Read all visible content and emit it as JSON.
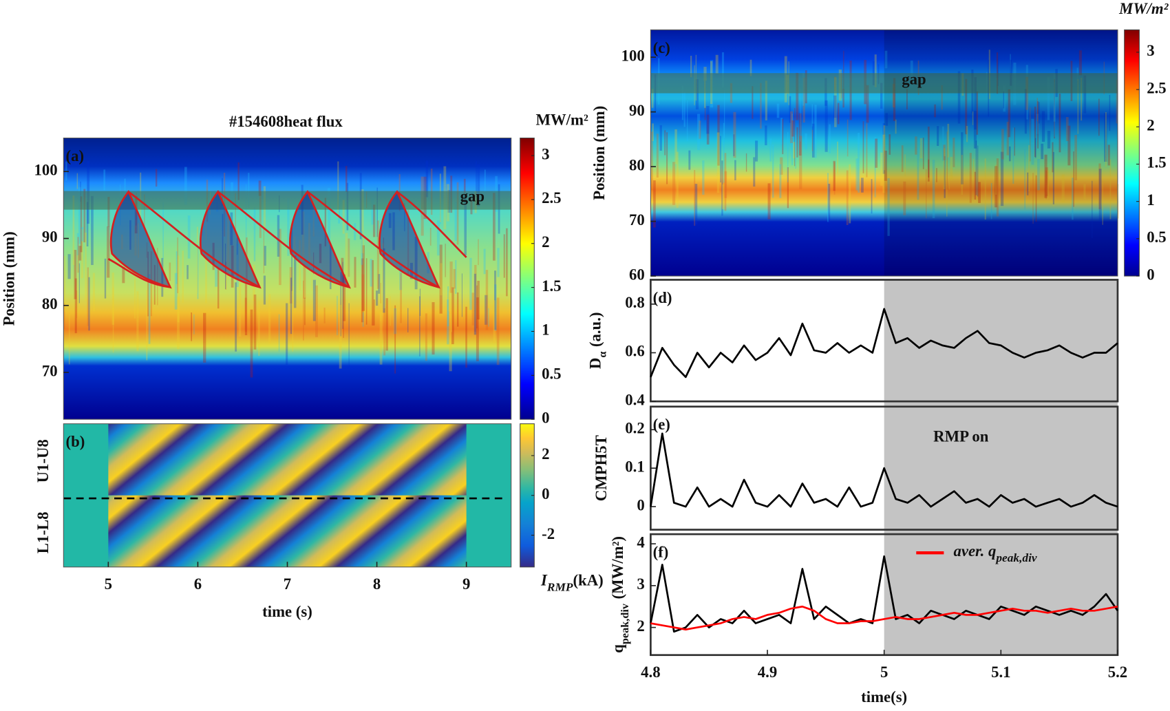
{
  "chart_data": [
    {
      "type": "heatmap",
      "panel_label": "(a)",
      "title": "#154608heat flux",
      "ylabel": "Position (mm)",
      "ylim": [
        63,
        105
      ],
      "yticks": [
        70,
        80,
        90,
        100
      ],
      "xlim": [
        4.5,
        9.5
      ],
      "colormap": "jet",
      "clim": [
        0,
        3.2
      ],
      "cticks": [
        0,
        0.5,
        1,
        1.5,
        2,
        2.5,
        3
      ],
      "colorbar_label": "MW/m²",
      "annotations": [
        "gap"
      ]
    },
    {
      "type": "heatmap",
      "panel_label": "(b)",
      "row_labels": [
        "U1-U8",
        "L1-L8"
      ],
      "xlim": [
        4.5,
        9.5
      ],
      "xticks": [
        5,
        6,
        7,
        8,
        9
      ],
      "xlabel": "time (s)",
      "colormap": "parula",
      "clim": [
        -3.6,
        3.6
      ],
      "cticks": [
        -2,
        0,
        2
      ],
      "colorbar_label": "I",
      "colorbar_label_sub": "RMP",
      "colorbar_label_unit": "(kA)"
    },
    {
      "type": "heatmap",
      "panel_label": "(c)",
      "ylabel": "Position (mm)",
      "ylim": [
        60,
        105
      ],
      "yticks": [
        60,
        70,
        80,
        90,
        100
      ],
      "xlim": [
        4.8,
        5.2
      ],
      "colormap": "jet",
      "clim": [
        0,
        3.3
      ],
      "cticks": [
        0,
        0.5,
        1,
        1.5,
        2,
        2.5,
        3
      ],
      "colorbar_label": "MW/m²",
      "annotations": [
        "gap"
      ]
    },
    {
      "type": "line",
      "panel_label": "(d)",
      "ylabel": "D",
      "ylabel_sub": "α",
      "ylabel_unit": "(a.u.)",
      "x": [
        4.8,
        4.81,
        4.82,
        4.83,
        4.84,
        4.85,
        4.86,
        4.87,
        4.88,
        4.89,
        4.9,
        4.91,
        4.92,
        4.93,
        4.94,
        4.95,
        4.96,
        4.97,
        4.98,
        4.99,
        5,
        5.01,
        5.02,
        5.03,
        5.04,
        5.05,
        5.06,
        5.07,
        5.08,
        5.09,
        5.1,
        5.11,
        5.12,
        5.13,
        5.14,
        5.15,
        5.16,
        5.17,
        5.18,
        5.19,
        5.2
      ],
      "xlim": [
        4.8,
        5.2
      ],
      "ylim": [
        0.4,
        0.9
      ],
      "yticks": [
        0.4,
        0.6,
        0.8
      ],
      "series": [
        {
          "color": "#000000",
          "values": [
            0.5,
            0.62,
            0.55,
            0.5,
            0.6,
            0.54,
            0.6,
            0.56,
            0.63,
            0.57,
            0.6,
            0.66,
            0.59,
            0.72,
            0.61,
            0.6,
            0.64,
            0.6,
            0.63,
            0.6,
            0.78,
            0.64,
            0.66,
            0.62,
            0.65,
            0.63,
            0.62,
            0.66,
            0.69,
            0.64,
            0.63,
            0.6,
            0.58,
            0.6,
            0.61,
            0.63,
            0.6,
            0.58,
            0.6,
            0.6,
            0.64
          ]
        }
      ]
    },
    {
      "type": "line",
      "panel_label": "(e)",
      "ylabel": "CMPH5T",
      "x": [
        4.8,
        4.81,
        4.82,
        4.83,
        4.84,
        4.85,
        4.86,
        4.87,
        4.88,
        4.89,
        4.9,
        4.91,
        4.92,
        4.93,
        4.94,
        4.95,
        4.96,
        4.97,
        4.98,
        4.99,
        5,
        5.01,
        5.02,
        5.03,
        5.04,
        5.05,
        5.06,
        5.07,
        5.08,
        5.09,
        5.1,
        5.11,
        5.12,
        5.13,
        5.14,
        5.15,
        5.16,
        5.17,
        5.18,
        5.19,
        5.2
      ],
      "xlim": [
        4.8,
        5.2
      ],
      "ylim": [
        -0.06,
        0.26
      ],
      "yticks": [
        0,
        0.1,
        0.2
      ],
      "annotations": [
        "RMP on"
      ],
      "series": [
        {
          "color": "#000000",
          "values": [
            0,
            0.19,
            0.01,
            0,
            0.05,
            0,
            0.02,
            0,
            0.07,
            0.01,
            0,
            0.03,
            0,
            0.06,
            0.01,
            0.02,
            0,
            0.05,
            0,
            0.01,
            0.1,
            0.02,
            0.01,
            0.03,
            0,
            0.02,
            0.04,
            0.01,
            0.02,
            0,
            0.03,
            0.01,
            0.02,
            0,
            0.01,
            0.02,
            0,
            0.01,
            0.03,
            0.01,
            0
          ]
        }
      ]
    },
    {
      "type": "line",
      "panel_label": "(f)",
      "ylabel": "q",
      "ylabel_sub": "peak,div",
      "ylabel_unit": "(MW/m²)",
      "x": [
        4.8,
        4.81,
        4.82,
        4.83,
        4.84,
        4.85,
        4.86,
        4.87,
        4.88,
        4.89,
        4.9,
        4.91,
        4.92,
        4.93,
        4.94,
        4.95,
        4.96,
        4.97,
        4.98,
        4.99,
        5,
        5.01,
        5.02,
        5.03,
        5.04,
        5.05,
        5.06,
        5.07,
        5.08,
        5.09,
        5.1,
        5.11,
        5.12,
        5.13,
        5.14,
        5.15,
        5.16,
        5.17,
        5.18,
        5.19,
        5.2
      ],
      "xlim": [
        4.8,
        5.2
      ],
      "ylim": [
        1.34,
        4.23
      ],
      "yticks": [
        2,
        3,
        4
      ],
      "xticks": [
        4.8,
        4.9,
        5,
        5.1,
        5.2
      ],
      "xlabel": "time(s)",
      "series": [
        {
          "color": "#000000",
          "values": [
            2.1,
            3.5,
            1.9,
            2,
            2.3,
            2,
            2.2,
            2.1,
            2.4,
            2.1,
            2.2,
            2.3,
            2.1,
            3.4,
            2.2,
            2.5,
            2.3,
            2.1,
            2.2,
            2.1,
            3.7,
            2.2,
            2.3,
            2.1,
            2.4,
            2.3,
            2.2,
            2.4,
            2.3,
            2.2,
            2.5,
            2.4,
            2.3,
            2.5,
            2.4,
            2.3,
            2.4,
            2.3,
            2.5,
            2.8,
            2.4
          ]
        },
        {
          "name": "aver. q",
          "name_sub": "peak,div",
          "color": "#ff0000",
          "values": [
            2.1,
            2.05,
            2,
            1.95,
            2,
            2.05,
            2.1,
            2.2,
            2.25,
            2.2,
            2.3,
            2.35,
            2.45,
            2.5,
            2.4,
            2.2,
            2.1,
            2.1,
            2.15,
            2.15,
            2.2,
            2.25,
            2.2,
            2.2,
            2.25,
            2.3,
            2.35,
            2.3,
            2.3,
            2.35,
            2.4,
            2.45,
            2.4,
            2.4,
            2.35,
            2.4,
            2.45,
            2.4,
            2.4,
            2.45,
            2.5
          ]
        }
      ]
    }
  ]
}
